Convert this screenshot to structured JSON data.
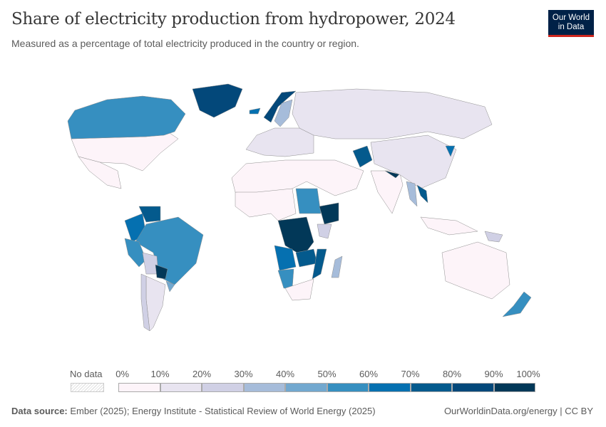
{
  "header": {
    "title": "Share of electricity production from hydropower, 2024",
    "subtitle": "Measured as a percentage of total electricity produced in the country or region.",
    "logo_text": "Our World in Data"
  },
  "chart_data": {
    "type": "choropleth-map",
    "title": "Share of electricity production from hydropower, 2024",
    "unit": "%",
    "legend": {
      "no_data_label": "No data",
      "no_data_color": "#eeeeee",
      "ticks": [
        "0%",
        "10%",
        "20%",
        "30%",
        "40%",
        "50%",
        "60%",
        "70%",
        "80%",
        "90%",
        "100%"
      ],
      "bins": [
        {
          "min": 0,
          "max": 10,
          "color": "#fdf4f9"
        },
        {
          "min": 10,
          "max": 20,
          "color": "#e8e4f0"
        },
        {
          "min": 20,
          "max": 30,
          "color": "#d0d0e5"
        },
        {
          "min": 30,
          "max": 40,
          "color": "#a6bcda"
        },
        {
          "min": 40,
          "max": 50,
          "color": "#72a8cf"
        },
        {
          "min": 50,
          "max": 60,
          "color": "#368fc0"
        },
        {
          "min": 60,
          "max": 70,
          "color": "#0570b0"
        },
        {
          "min": 70,
          "max": 80,
          "color": "#045a8d"
        },
        {
          "min": 80,
          "max": 90,
          "color": "#03487a"
        },
        {
          "min": 90,
          "max": 100,
          "color": "#023858"
        }
      ]
    },
    "regions": [
      {
        "name": "Canada",
        "value": 55
      },
      {
        "name": "United States",
        "value": 5
      },
      {
        "name": "Mexico",
        "value": 8
      },
      {
        "name": "Greenland",
        "value": 85
      },
      {
        "name": "Brazil",
        "value": 55
      },
      {
        "name": "Colombia",
        "value": 65
      },
      {
        "name": "Venezuela",
        "value": 80
      },
      {
        "name": "Peru",
        "value": 55
      },
      {
        "name": "Bolivia",
        "value": 25
      },
      {
        "name": "Paraguay",
        "value": 100
      },
      {
        "name": "Argentina",
        "value": 20
      },
      {
        "name": "Chile",
        "value": 25
      },
      {
        "name": "Uruguay",
        "value": 45
      },
      {
        "name": "Norway",
        "value": 88
      },
      {
        "name": "Sweden",
        "value": 40
      },
      {
        "name": "Iceland",
        "value": 70
      },
      {
        "name": "Europe (rest)",
        "value": 12
      },
      {
        "name": "Russia",
        "value": 17
      },
      {
        "name": "China",
        "value": 14
      },
      {
        "name": "India",
        "value": 8
      },
      {
        "name": "Afghanistan",
        "value": 80
      },
      {
        "name": "Tajikistan",
        "value": 95
      },
      {
        "name": "Nepal",
        "value": 99
      },
      {
        "name": "Myanmar",
        "value": 40
      },
      {
        "name": "Laos",
        "value": 75
      },
      {
        "name": "North Korea",
        "value": 65
      },
      {
        "name": "Middle East / North Africa",
        "value": 3
      },
      {
        "name": "Sudan",
        "value": 60
      },
      {
        "name": "Ethiopia",
        "value": 95
      },
      {
        "name": "DR Congo",
        "value": 98
      },
      {
        "name": "Zambia",
        "value": 80
      },
      {
        "name": "Angola",
        "value": 70
      },
      {
        "name": "Mozambique",
        "value": 80
      },
      {
        "name": "Namibia",
        "value": 60
      },
      {
        "name": "Madagascar",
        "value": 40
      },
      {
        "name": "South Africa",
        "value": 2
      },
      {
        "name": "Kenya",
        "value": 25
      },
      {
        "name": "Australia",
        "value": 5
      },
      {
        "name": "New Zealand",
        "value": 55
      },
      {
        "name": "Papua New Guinea",
        "value": 25
      },
      {
        "name": "Indonesia",
        "value": 8
      }
    ]
  },
  "footer": {
    "source_label": "Data source:",
    "source_text": "Ember (2025); Energy Institute - Statistical Review of World Energy (2025)",
    "right_text": "OurWorldinData.org/energy | CC BY"
  }
}
